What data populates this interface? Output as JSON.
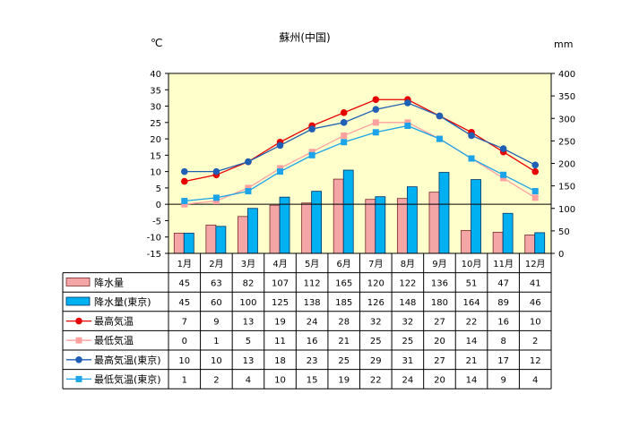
{
  "chart_data": {
    "type": "bar",
    "title": "蘇州(中国)",
    "left_unit": "℃",
    "right_unit": "mm",
    "categories": [
      "1月",
      "2月",
      "3月",
      "4月",
      "5月",
      "6月",
      "7月",
      "8月",
      "9月",
      "10月",
      "11月",
      "12月"
    ],
    "y_left": {
      "min": -15,
      "max": 40,
      "ticks": [
        40,
        35,
        30,
        25,
        20,
        15,
        10,
        5,
        0,
        -5,
        -10,
        -15
      ]
    },
    "y_right": {
      "min": 0,
      "max": 400,
      "ticks": [
        400,
        350,
        300,
        250,
        200,
        150,
        100,
        50,
        0
      ]
    },
    "series": [
      {
        "name": "降水量",
        "kind": "bar",
        "axis": "right",
        "color": "#f4a6a6",
        "border": "#7a2a2a",
        "values": [
          45,
          63,
          82,
          107,
          112,
          165,
          120,
          122,
          136,
          51,
          47,
          41
        ]
      },
      {
        "name": "降水量(東京)",
        "kind": "bar",
        "axis": "right",
        "color": "#00b0f0",
        "border": "#003366",
        "values": [
          45,
          60,
          100,
          125,
          138,
          185,
          126,
          148,
          180,
          164,
          89,
          46
        ]
      },
      {
        "name": "最高気温",
        "kind": "line",
        "axis": "left",
        "color": "#e60000",
        "marker": "circle",
        "values": [
          7,
          9,
          13,
          19,
          24,
          28,
          32,
          32,
          27,
          22,
          16,
          10
        ]
      },
      {
        "name": "最低気温",
        "kind": "line",
        "axis": "left",
        "color": "#ffa0a0",
        "marker": "square",
        "values": [
          0,
          1,
          5,
          11,
          16,
          21,
          25,
          25,
          20,
          14,
          8,
          2
        ]
      },
      {
        "name": "最高気温(東京)",
        "kind": "line",
        "axis": "left",
        "color": "#1f5fb4",
        "marker": "circle",
        "values": [
          10,
          10,
          13,
          18,
          23,
          25,
          29,
          31,
          27,
          21,
          17,
          12
        ]
      },
      {
        "name": "最低気温(東京)",
        "kind": "line",
        "axis": "left",
        "color": "#1ca3e8",
        "marker": "square",
        "values": [
          1,
          2,
          4,
          10,
          15,
          19,
          22,
          24,
          20,
          14,
          9,
          4
        ]
      }
    ],
    "colors": {
      "plot_background": "#ffffcc",
      "zero_line": "#000000"
    }
  }
}
